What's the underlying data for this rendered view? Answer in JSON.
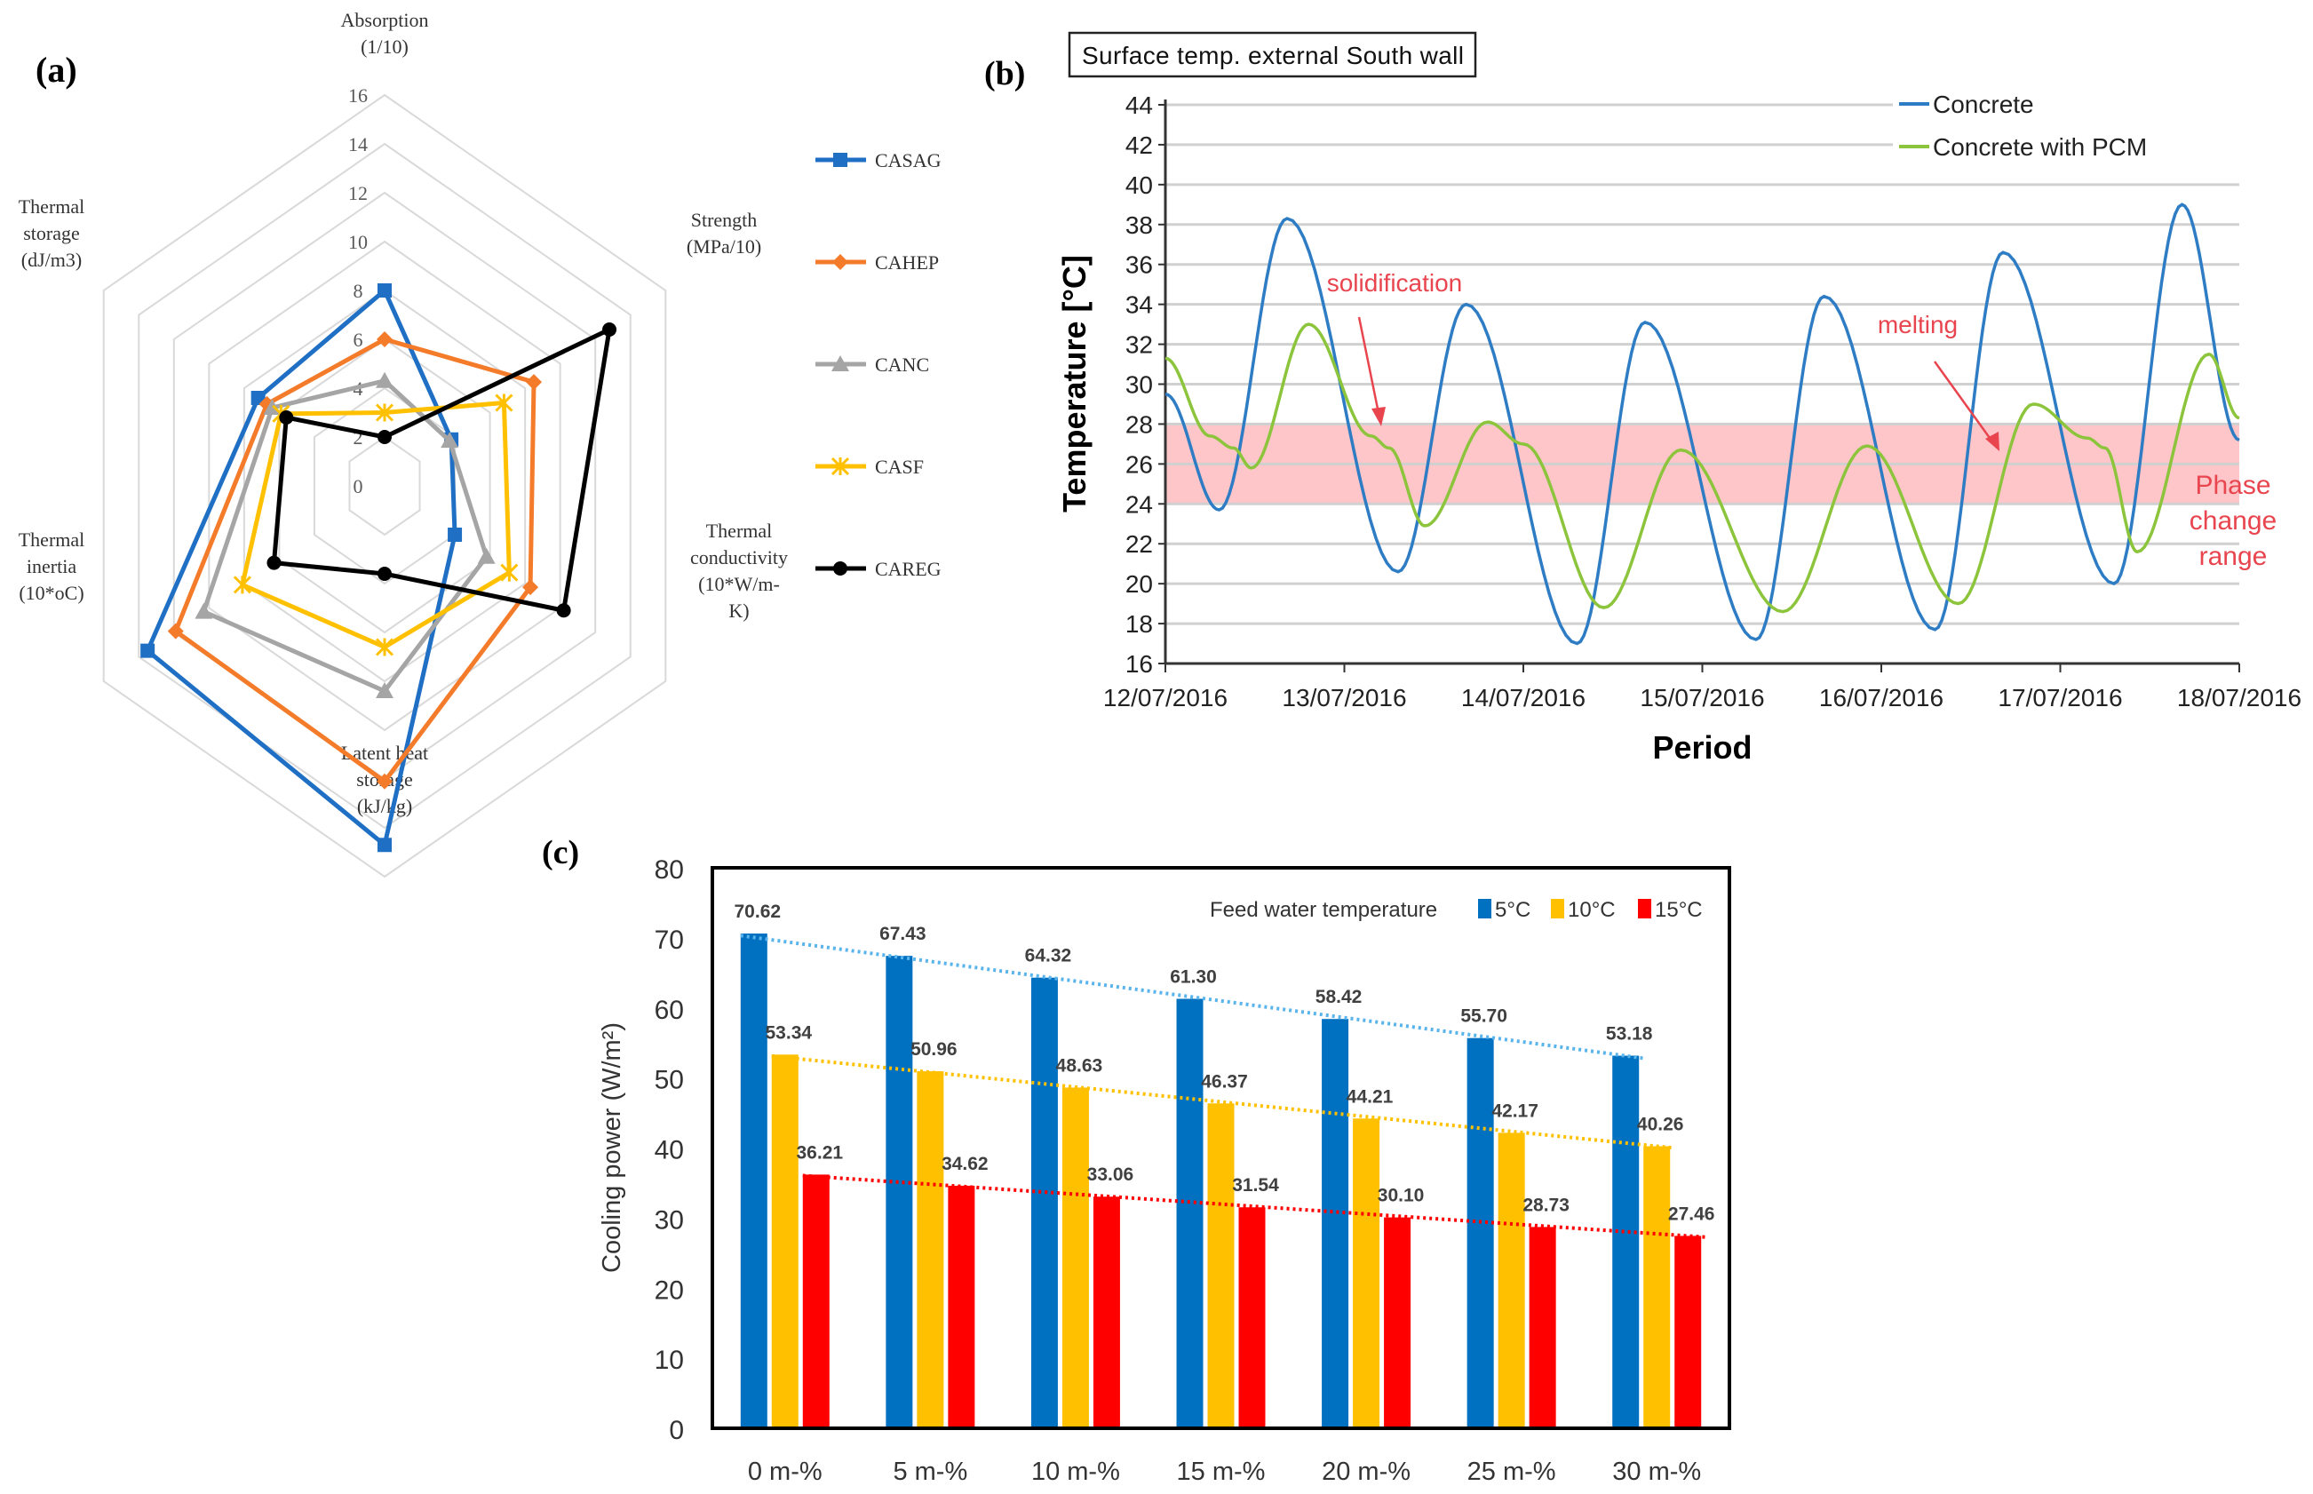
{
  "chart_data": [
    {
      "panel_label": "(a)",
      "type": "radar",
      "axes": [
        [
          "Absorption",
          "(1/10)"
        ],
        [
          "Strength",
          "(MPa/10)"
        ],
        [
          "Thermal",
          "conductivity",
          "(10*W/m-",
          "K)"
        ],
        [
          "Latent heat",
          "storage",
          "(kJ/kg)"
        ],
        [
          "Thermal",
          "inertia",
          "(10*oC)"
        ],
        [
          "Thermal",
          "storage",
          "(dJ/m3)"
        ]
      ],
      "ticks": [
        "0",
        "2",
        "4",
        "6",
        "8",
        "10",
        "12",
        "14",
        "16"
      ],
      "range": [
        0,
        16
      ],
      "legend_position": "right",
      "series": [
        {
          "name": "CASAG",
          "color": "#1f6fc5",
          "marker": "square",
          "values": [
            8,
            3.8,
            4,
            14.7,
            13.5,
            7.2
          ]
        },
        {
          "name": "CAHEP",
          "color": "#f47b2a",
          "marker": "diamond",
          "values": [
            6,
            8.5,
            8.3,
            12.1,
            11.9,
            6.7
          ]
        },
        {
          "name": "CANC",
          "color": "#a5a5a5",
          "marker": "triangle",
          "values": [
            4.3,
            3.7,
            5.8,
            8.4,
            10.3,
            6.4
          ]
        },
        {
          "name": "CASF",
          "color": "#ffc000",
          "marker": "star",
          "values": [
            3,
            6.8,
            7.1,
            6.6,
            8.1,
            5.9
          ]
        },
        {
          "name": "CAREG",
          "color": "#000000",
          "marker": "circle",
          "values": [
            2,
            12.8,
            10.2,
            3.6,
            6.3,
            5.6
          ]
        }
      ]
    },
    {
      "panel_label": "(b)",
      "type": "line",
      "title": "Surface temp. external South wall",
      "xlabel": "Period",
      "ylabel": "Temperature [°C]",
      "ylim": [
        16,
        44
      ],
      "yticks": [
        "16",
        "18",
        "20",
        "22",
        "24",
        "26",
        "28",
        "30",
        "32",
        "34",
        "36",
        "38",
        "40",
        "42",
        "44"
      ],
      "xticks": [
        "12/07/2016",
        "13/07/2016",
        "14/07/2016",
        "15/07/2016",
        "16/07/2016",
        "17/07/2016",
        "18/07/2016"
      ],
      "xlim_days": [
        0,
        6
      ],
      "grid": true,
      "legend_position": "top-right",
      "band": {
        "from": 24,
        "to": 28,
        "color": "#ffb3b8",
        "label": [
          "Phase",
          "change",
          "range"
        ]
      },
      "annotations": {
        "solidification": "solidification",
        "melting": "melting"
      },
      "series": [
        {
          "name": "Concrete",
          "color": "#2e7cc4",
          "points": [
            [
              0,
              29.5
            ],
            [
              0.3,
              23.7
            ],
            [
              0.68,
              38.3
            ],
            [
              1.3,
              20.6
            ],
            [
              1.68,
              34
            ],
            [
              2.3,
              17
            ],
            [
              2.68,
              33.1
            ],
            [
              3.3,
              17.2
            ],
            [
              3.68,
              34.4
            ],
            [
              4.3,
              17.7
            ],
            [
              4.68,
              36.6
            ],
            [
              5.3,
              20
            ],
            [
              5.68,
              39
            ],
            [
              6,
              27.2
            ]
          ]
        },
        {
          "name": "Concrete with PCM",
          "color": "#8cc43c",
          "points": [
            [
              0,
              31.3
            ],
            [
              0.25,
              27.4
            ],
            [
              0.38,
              26.8
            ],
            [
              0.48,
              25.8
            ],
            [
              0.8,
              33
            ],
            [
              1.15,
              27.4
            ],
            [
              1.25,
              26.8
            ],
            [
              1.45,
              22.9
            ],
            [
              1.8,
              28.1
            ],
            [
              2.0,
              27
            ],
            [
              2.45,
              18.8
            ],
            [
              2.88,
              26.7
            ],
            [
              3.45,
              18.6
            ],
            [
              3.92,
              26.9
            ],
            [
              4.43,
              19
            ],
            [
              4.85,
              29
            ],
            [
              5.15,
              27.3
            ],
            [
              5.25,
              26.8
            ],
            [
              5.43,
              21.6
            ],
            [
              5.83,
              31.5
            ],
            [
              6,
              28.3
            ]
          ]
        }
      ]
    },
    {
      "panel_label": "(c)",
      "type": "bar",
      "ylabel": "Cooling power (W/m²)",
      "ylim": [
        0,
        80
      ],
      "yticks": [
        "0",
        "10",
        "20",
        "30",
        "40",
        "50",
        "60",
        "70",
        "80"
      ],
      "categories": [
        "0 m-%",
        "5 m-%",
        "10 m-%",
        "15 m-%",
        "20 m-%",
        "25 m-%",
        "30 m-%"
      ],
      "legend_title": "Feed water temperature",
      "legend_position": "top-right",
      "trendlines": "linear, dotted",
      "series": [
        {
          "name": "5°C",
          "color": "#0070c0",
          "trend_color": "#5ab4ec",
          "values": [
            70.62,
            67.43,
            64.32,
            61.3,
            58.42,
            55.7,
            53.18
          ],
          "labels": [
            "70.62",
            "67.43",
            "64.32",
            "61.30",
            "58.42",
            "55.70",
            "53.18"
          ]
        },
        {
          "name": "10°C",
          "color": "#ffc000",
          "trend_color": "#ffc000",
          "values": [
            53.34,
            50.96,
            48.63,
            46.37,
            44.21,
            42.17,
            40.26
          ],
          "labels": [
            "53.34",
            "50.96",
            "48.63",
            "46.37",
            "44.21",
            "42.17",
            "40.26"
          ]
        },
        {
          "name": "15°C",
          "color": "#ff0000",
          "trend_color": "#ff0000",
          "values": [
            36.21,
            34.62,
            33.06,
            31.54,
            30.1,
            28.73,
            27.46
          ],
          "labels": [
            "36.21",
            "34.62",
            "33.06",
            "31.54",
            "30.10",
            "28.73",
            "27.46"
          ]
        }
      ]
    }
  ]
}
